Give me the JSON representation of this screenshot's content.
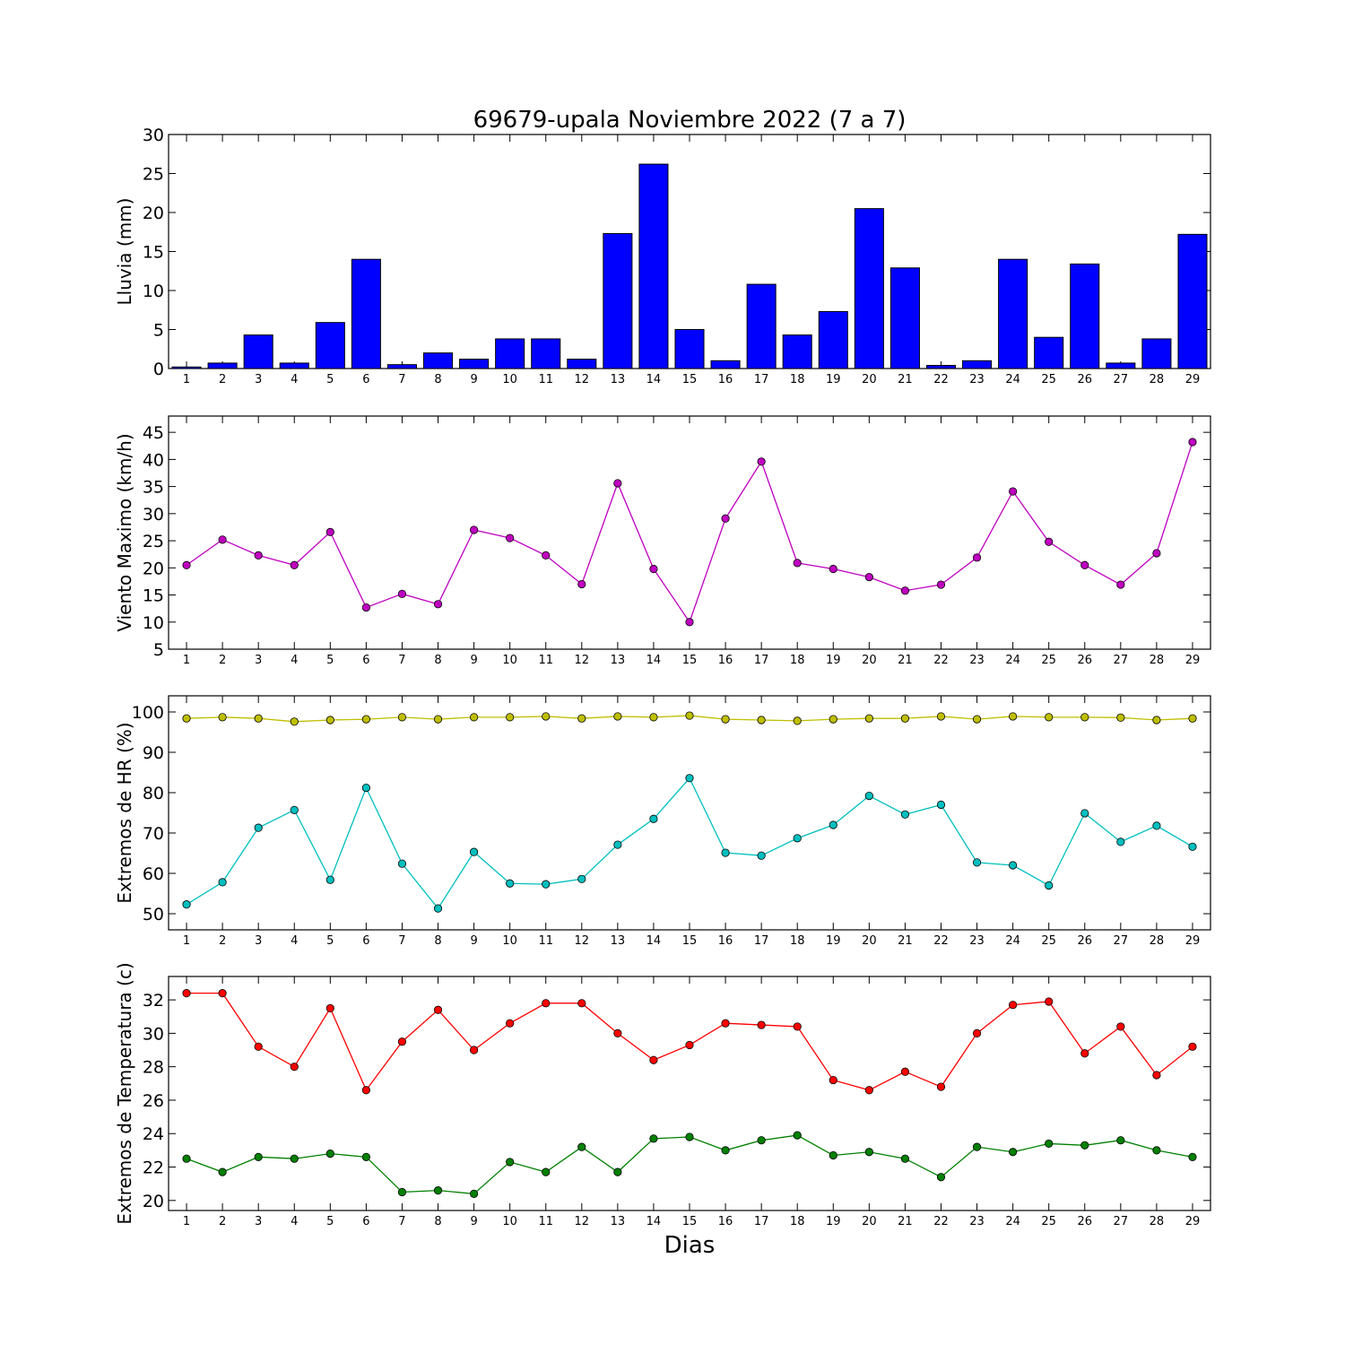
{
  "chart_data": {
    "title": "69679-upala Noviembre 2022  (7 a 7)",
    "xlabel": "Dias",
    "days": [
      1,
      2,
      3,
      4,
      5,
      6,
      7,
      8,
      9,
      10,
      11,
      12,
      13,
      14,
      15,
      16,
      17,
      18,
      19,
      20,
      21,
      22,
      23,
      24,
      25,
      26,
      27,
      28,
      29
    ],
    "panels": [
      {
        "id": "lluvia",
        "type": "bar",
        "ylabel": "Lluvia (mm)",
        "ylim": [
          0,
          30
        ],
        "yticks": [
          0,
          5,
          10,
          15,
          20,
          25,
          30
        ],
        "series": [
          {
            "color": "#0000ff",
            "values": [
              0.2,
              0.7,
              4.3,
              0.7,
              5.9,
              14.0,
              0.5,
              2.0,
              1.2,
              3.8,
              3.8,
              1.2,
              17.3,
              26.2,
              5.0,
              1.0,
              10.8,
              4.3,
              7.3,
              20.5,
              12.9,
              0.4,
              1.0,
              14.0,
              4.0,
              13.4,
              0.7,
              3.8,
              17.2
            ]
          }
        ]
      },
      {
        "id": "viento",
        "type": "line",
        "ylabel": "Viento Maximo (km/h)",
        "ylim": [
          5,
          48
        ],
        "yticks": [
          5,
          10,
          15,
          20,
          25,
          30,
          35,
          40,
          45
        ],
        "series": [
          {
            "color": "#bf00bf",
            "values": [
              20.5,
              25.2,
              22.3,
              20.5,
              26.6,
              12.7,
              15.2,
              13.3,
              27.0,
              25.5,
              22.3,
              17.0,
              35.6,
              19.8,
              10.0,
              29.1,
              39.6,
              20.9,
              19.8,
              18.3,
              15.8,
              16.9,
              21.9,
              34.1,
              24.8,
              20.5,
              16.9,
              22.7,
              43.2
            ]
          }
        ]
      },
      {
        "id": "hr",
        "type": "line",
        "ylabel": "Extremos de HR (%)",
        "ylim": [
          46,
          104
        ],
        "yticks": [
          50,
          60,
          70,
          80,
          90,
          100
        ],
        "series": [
          {
            "color": "#bfbf00",
            "values": [
              98.4,
              98.7,
              98.4,
              97.6,
              98.0,
              98.2,
              98.7,
              98.2,
              98.7,
              98.7,
              98.9,
              98.4,
              98.9,
              98.7,
              99.1,
              98.2,
              98.0,
              97.8,
              98.2,
              98.4,
              98.4,
              98.9,
              98.2,
              98.9,
              98.7,
              98.7,
              98.6,
              98.0,
              98.4
            ]
          },
          {
            "color": "#00bfbf",
            "values": [
              52.3,
              57.8,
              71.3,
              75.7,
              58.4,
              81.2,
              62.4,
              51.3,
              65.3,
              57.5,
              57.3,
              58.6,
              67.1,
              73.5,
              83.6,
              65.1,
              64.4,
              68.7,
              72.0,
              79.2,
              74.6,
              77.0,
              62.7,
              62.0,
              57.0,
              74.9,
              67.8,
              71.8,
              66.6
            ]
          }
        ]
      },
      {
        "id": "temp",
        "type": "line",
        "ylabel": "Extremos de Temperatura (c)",
        "ylim": [
          19.4,
          33.4
        ],
        "yticks": [
          20,
          22,
          24,
          26,
          28,
          30,
          32
        ],
        "series": [
          {
            "color": "#ff0000",
            "values": [
              32.4,
              32.4,
              29.2,
              28.0,
              31.5,
              26.6,
              29.5,
              31.4,
              29.0,
              30.6,
              31.8,
              31.8,
              30.0,
              28.4,
              29.3,
              30.6,
              30.5,
              30.4,
              27.2,
              26.6,
              27.7,
              26.8,
              30.0,
              31.7,
              31.9,
              28.8,
              30.4,
              27.5,
              29.2
            ]
          },
          {
            "color": "#008000",
            "values": [
              22.5,
              21.7,
              22.6,
              22.5,
              22.8,
              22.6,
              20.5,
              20.6,
              20.4,
              22.3,
              21.7,
              23.2,
              21.7,
              23.7,
              23.8,
              23.0,
              23.6,
              23.9,
              22.7,
              22.9,
              22.5,
              21.4,
              23.2,
              22.9,
              23.4,
              23.3,
              23.6,
              23.0,
              22.6
            ]
          }
        ]
      }
    ]
  }
}
